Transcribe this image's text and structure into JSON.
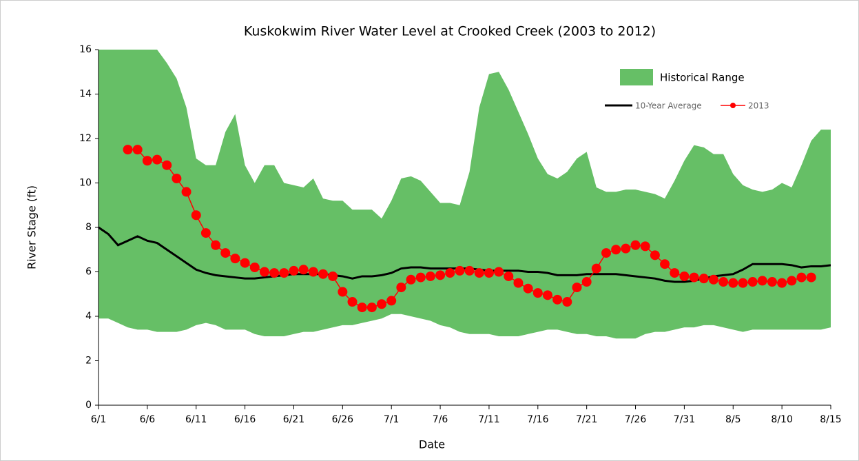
{
  "chart_data": {
    "type": "line",
    "title": "Kuskokwim River Water Level at Crooked Creek (2003 to 2012)",
    "xlabel": "Date",
    "ylabel": "River Stage (ft)",
    "categories": [
      "6/1",
      null,
      null,
      null,
      null,
      "6/6",
      null,
      null,
      null,
      null,
      "6/11",
      null,
      null,
      null,
      null,
      "6/16",
      null,
      null,
      null,
      null,
      "6/21",
      null,
      null,
      null,
      null,
      "6/26",
      null,
      null,
      null,
      null,
      "7/1",
      null,
      null,
      null,
      null,
      "7/6",
      null,
      null,
      null,
      null,
      "7/11",
      null,
      null,
      null,
      null,
      "7/16",
      null,
      null,
      null,
      null,
      "7/21",
      null,
      null,
      null,
      null,
      "7/26",
      null,
      null,
      null,
      null,
      "7/31",
      null,
      null,
      null,
      null,
      "8/5",
      null,
      null,
      null,
      null,
      "8/10",
      null,
      null,
      null,
      null,
      "8/15"
    ],
    "ylim": [
      0,
      16
    ],
    "yticks": [
      0,
      2,
      4,
      6,
      8,
      10,
      12,
      14,
      16
    ],
    "series": [
      {
        "name": "Historical Range",
        "kind": "band",
        "color": "#66bf66",
        "upper": [
          16,
          16,
          16,
          16,
          16,
          16,
          16,
          15.4,
          14.7,
          13.4,
          11.1,
          10.8,
          10.8,
          12.3,
          13.1,
          10.8,
          10.0,
          10.8,
          10.8,
          10.0,
          9.9,
          9.8,
          10.2,
          9.3,
          9.2,
          9.2,
          8.8,
          8.8,
          8.8,
          8.4,
          9.2,
          10.2,
          10.3,
          10.1,
          9.6,
          9.1,
          9.1,
          9.0,
          10.5,
          13.4,
          14.9,
          15.0,
          14.2,
          13.2,
          12.2,
          11.1,
          10.4,
          10.2,
          10.5,
          11.1,
          11.4,
          9.8,
          9.6,
          9.6,
          9.7,
          9.7,
          9.6,
          9.5,
          9.3,
          10.1,
          11.0,
          11.7,
          11.6,
          11.3,
          11.3,
          10.4,
          9.9,
          9.7,
          9.6,
          9.7,
          10.0,
          9.8,
          10.8,
          11.9,
          12.4,
          12.4
        ],
        "lower": [
          3.9,
          3.9,
          3.7,
          3.5,
          3.4,
          3.4,
          3.3,
          3.3,
          3.3,
          3.4,
          3.6,
          3.7,
          3.6,
          3.4,
          3.4,
          3.4,
          3.2,
          3.1,
          3.1,
          3.1,
          3.2,
          3.3,
          3.3,
          3.4,
          3.5,
          3.6,
          3.6,
          3.7,
          3.8,
          3.9,
          4.1,
          4.1,
          4.0,
          3.9,
          3.8,
          3.6,
          3.5,
          3.3,
          3.2,
          3.2,
          3.2,
          3.1,
          3.1,
          3.1,
          3.2,
          3.3,
          3.4,
          3.4,
          3.3,
          3.2,
          3.2,
          3.1,
          3.1,
          3.0,
          3.0,
          3.0,
          3.2,
          3.3,
          3.3,
          3.4,
          3.5,
          3.5,
          3.6,
          3.6,
          3.5,
          3.4,
          3.3,
          3.4,
          3.4,
          3.4,
          3.4,
          3.4,
          3.4,
          3.4,
          3.4,
          3.5
        ]
      },
      {
        "name": "10-Year Average",
        "kind": "line",
        "color": "#000000",
        "values": [
          8.0,
          7.7,
          7.2,
          7.4,
          7.6,
          7.4,
          7.3,
          7.0,
          6.7,
          6.4,
          6.1,
          5.95,
          5.85,
          5.8,
          5.75,
          5.7,
          5.7,
          5.75,
          5.8,
          5.85,
          5.9,
          5.9,
          5.9,
          5.9,
          5.85,
          5.8,
          5.7,
          5.8,
          5.8,
          5.85,
          5.95,
          6.15,
          6.2,
          6.2,
          6.15,
          6.15,
          6.15,
          6.15,
          6.15,
          6.1,
          6.05,
          6.05,
          6.05,
          6.05,
          6.0,
          6.0,
          5.95,
          5.85,
          5.85,
          5.85,
          5.9,
          5.9,
          5.9,
          5.9,
          5.85,
          5.8,
          5.75,
          5.7,
          5.6,
          5.55,
          5.55,
          5.6,
          5.7,
          5.8,
          5.85,
          5.9,
          6.1,
          6.35,
          6.35,
          6.35,
          6.35,
          6.3,
          6.2,
          6.25,
          6.25,
          6.3
        ]
      },
      {
        "name": "2013",
        "kind": "marker-line",
        "color": "#ff0000",
        "values": [
          null,
          null,
          null,
          11.5,
          11.5,
          11.0,
          11.05,
          10.8,
          10.2,
          9.6,
          8.55,
          7.75,
          7.2,
          6.85,
          6.6,
          6.4,
          6.2,
          6.0,
          5.95,
          5.95,
          6.05,
          6.1,
          6.0,
          5.9,
          5.8,
          5.1,
          4.65,
          4.4,
          4.4,
          4.55,
          4.7,
          5.3,
          5.65,
          5.75,
          5.8,
          5.85,
          5.95,
          6.05,
          6.05,
          5.95,
          5.95,
          6.0,
          5.8,
          5.5,
          5.25,
          5.05,
          4.95,
          4.75,
          4.65,
          5.3,
          5.55,
          6.15,
          6.85,
          7.0,
          7.05,
          7.2,
          7.15,
          6.75,
          6.35,
          5.95,
          5.8,
          5.75,
          5.7,
          5.65,
          5.55,
          5.5,
          5.5,
          5.55,
          5.6,
          5.55,
          5.5,
          5.6,
          5.75,
          5.75,
          null,
          null
        ]
      }
    ]
  }
}
